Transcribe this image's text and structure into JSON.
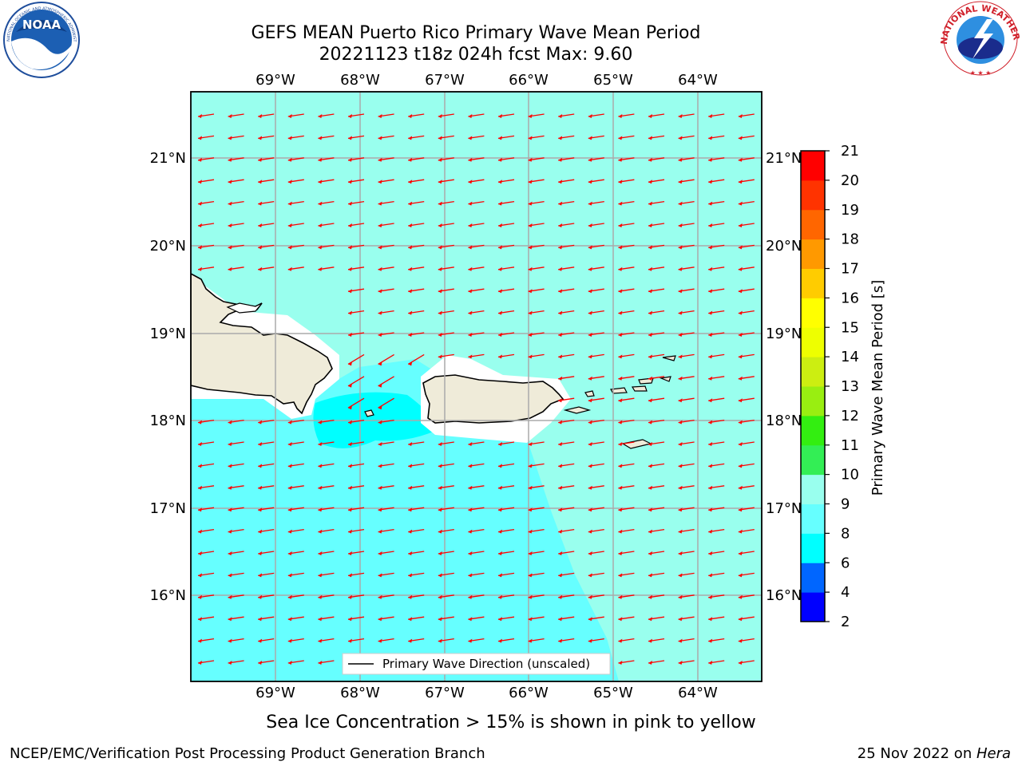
{
  "header": {
    "title_line1": "GEFS MEAN Puerto Rico Primary Wave Mean Period",
    "title_line2": "20221123 t18z 024h fcst   Max: 9.60"
  },
  "logos": {
    "noaa_text": "NOAA",
    "noaa_ring_text": "NATIONAL OCEANIC AND ATMOSPHERIC ADMINISTRATION · U.S. DEPARTMENT OF COMMERCE",
    "nws_ring_text": "NATIONAL WEATHER SERVICE"
  },
  "map": {
    "lon_labels": [
      "69°W",
      "68°W",
      "67°W",
      "66°W",
      "65°W",
      "64°W"
    ],
    "lat_labels": [
      "21°N",
      "20°N",
      "19°N",
      "18°N",
      "17°N",
      "16°N"
    ],
    "legend_label": "Primary Wave Direction (unscaled)",
    "arrow_color": "#ff0000",
    "land_color": "#efebd9"
  },
  "colorbar": {
    "label": "Primary Wave Mean Period [s]",
    "ticks": [
      "2",
      "4",
      "6",
      "8",
      "9",
      "10",
      "11",
      "12",
      "13",
      "14",
      "15",
      "16",
      "17",
      "18",
      "19",
      "20",
      "21"
    ],
    "colors": [
      "#0000ff",
      "#0066ff",
      "#00ffff",
      "#66ffff",
      "#99ffee",
      "#33ee55",
      "#33ee11",
      "#99ee11",
      "#ccee11",
      "#eeff00",
      "#ffff00",
      "#ffcc00",
      "#ff9900",
      "#ff6600",
      "#ff3300",
      "#ff0000"
    ]
  },
  "note": "Sea Ice Concentration > 15% is shown in pink to yellow",
  "footer": {
    "left": "NCEP/EMC/Verification Post Processing Product Generation Branch",
    "right_prefix": "25 Nov 2022 on ",
    "right_host": "Hera"
  }
}
